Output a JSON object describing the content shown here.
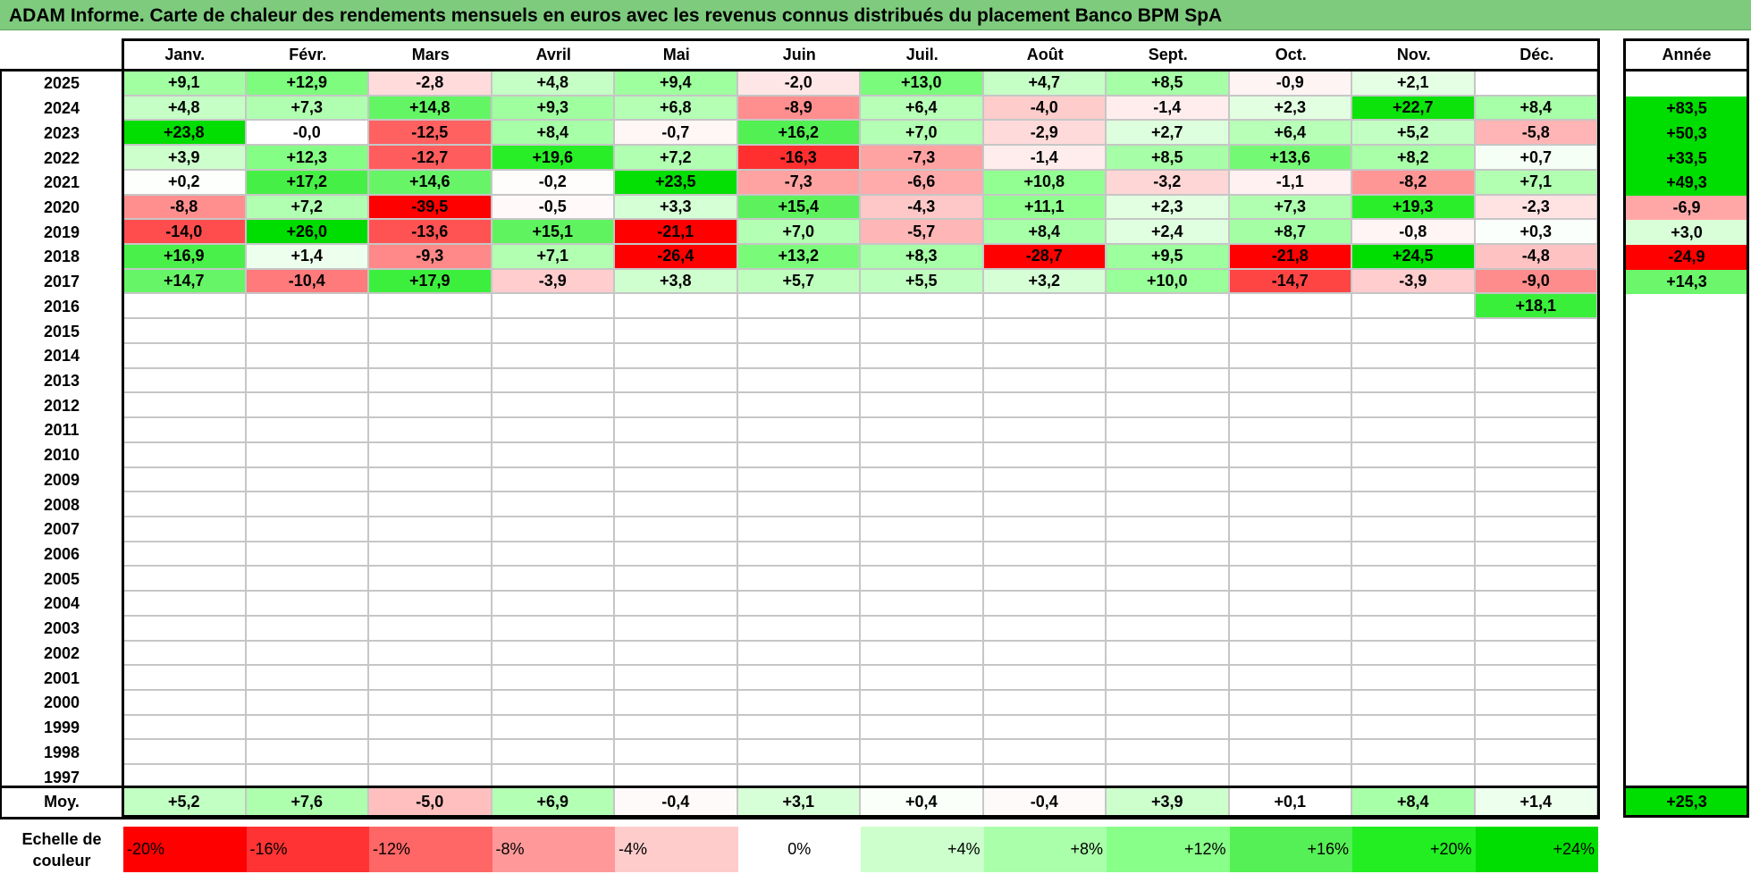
{
  "title": "ADAM Informe. Carte de chaleur des rendements mensuels en euros avec les revenus connus distribués du placement Banco BPM SpA",
  "chart_data": {
    "type": "heatmap",
    "title": "ADAM Informe. Carte de chaleur des rendements mensuels en euros avec les revenus connus distribués du placement Banco BPM SpA",
    "months": [
      "Janv.",
      "Févr.",
      "Mars",
      "Avril",
      "Mai",
      "Juin",
      "Juil.",
      "Août",
      "Sept.",
      "Oct.",
      "Nov.",
      "Déc."
    ],
    "year_header": "Année",
    "rows": [
      {
        "year": "2025",
        "values": [
          "+9,1",
          "+12,9",
          "-2,8",
          "+4,8",
          "+9,4",
          "-2,0",
          "+13,0",
          "+4,7",
          "+8,5",
          "-0,9",
          "+2,1",
          ""
        ],
        "annual": ""
      },
      {
        "year": "2024",
        "values": [
          "+4,8",
          "+7,3",
          "+14,8",
          "+9,3",
          "+6,8",
          "-8,9",
          "+6,4",
          "-4,0",
          "-1,4",
          "+2,3",
          "+22,7",
          "+8,4"
        ],
        "annual": "+83,5"
      },
      {
        "year": "2023",
        "values": [
          "+23,8",
          "-0,0",
          "-12,5",
          "+8,4",
          "-0,7",
          "+16,2",
          "+7,0",
          "-2,9",
          "+2,7",
          "+6,4",
          "+5,2",
          "-5,8"
        ],
        "annual": "+50,3"
      },
      {
        "year": "2022",
        "values": [
          "+3,9",
          "+12,3",
          "-12,7",
          "+19,6",
          "+7,2",
          "-16,3",
          "-7,3",
          "-1,4",
          "+8,5",
          "+13,6",
          "+8,2",
          "+0,7"
        ],
        "annual": "+33,5"
      },
      {
        "year": "2021",
        "values": [
          "+0,2",
          "+17,2",
          "+14,6",
          "-0,2",
          "+23,5",
          "-7,3",
          "-6,6",
          "+10,8",
          "-3,2",
          "-1,1",
          "-8,2",
          "+7,1"
        ],
        "annual": "+49,3"
      },
      {
        "year": "2020",
        "values": [
          "-8,8",
          "+7,2",
          "-39,5",
          "-0,5",
          "+3,3",
          "+15,4",
          "-4,3",
          "+11,1",
          "+2,3",
          "+7,3",
          "+19,3",
          "-2,3"
        ],
        "annual": "-6,9"
      },
      {
        "year": "2019",
        "values": [
          "-14,0",
          "+26,0",
          "-13,6",
          "+15,1",
          "-21,1",
          "+7,0",
          "-5,7",
          "+8,4",
          "+2,4",
          "+8,7",
          "-0,8",
          "+0,3"
        ],
        "annual": "+3,0"
      },
      {
        "year": "2018",
        "values": [
          "+16,9",
          "+1,4",
          "-9,3",
          "+7,1",
          "-26,4",
          "+13,2",
          "+8,3",
          "-28,7",
          "+9,5",
          "-21,8",
          "+24,5",
          "-4,8"
        ],
        "annual": "-24,9"
      },
      {
        "year": "2017",
        "values": [
          "+14,7",
          "-10,4",
          "+17,9",
          "-3,9",
          "+3,8",
          "+5,7",
          "+5,5",
          "+3,2",
          "+10,0",
          "-14,7",
          "-3,9",
          "-9,0"
        ],
        "annual": "+14,3"
      },
      {
        "year": "2016",
        "values": [
          "",
          "",
          "",
          "",
          "",
          "",
          "",
          "",
          "",
          "",
          "",
          "+18,1"
        ],
        "annual": ""
      },
      {
        "year": "2015",
        "values": [
          "",
          "",
          "",
          "",
          "",
          "",
          "",
          "",
          "",
          "",
          "",
          ""
        ],
        "annual": ""
      },
      {
        "year": "2014",
        "values": [
          "",
          "",
          "",
          "",
          "",
          "",
          "",
          "",
          "",
          "",
          "",
          ""
        ],
        "annual": ""
      },
      {
        "year": "2013",
        "values": [
          "",
          "",
          "",
          "",
          "",
          "",
          "",
          "",
          "",
          "",
          "",
          ""
        ],
        "annual": ""
      },
      {
        "year": "2012",
        "values": [
          "",
          "",
          "",
          "",
          "",
          "",
          "",
          "",
          "",
          "",
          "",
          ""
        ],
        "annual": ""
      },
      {
        "year": "2011",
        "values": [
          "",
          "",
          "",
          "",
          "",
          "",
          "",
          "",
          "",
          "",
          "",
          ""
        ],
        "annual": ""
      },
      {
        "year": "2010",
        "values": [
          "",
          "",
          "",
          "",
          "",
          "",
          "",
          "",
          "",
          "",
          "",
          ""
        ],
        "annual": ""
      },
      {
        "year": "2009",
        "values": [
          "",
          "",
          "",
          "",
          "",
          "",
          "",
          "",
          "",
          "",
          "",
          ""
        ],
        "annual": ""
      },
      {
        "year": "2008",
        "values": [
          "",
          "",
          "",
          "",
          "",
          "",
          "",
          "",
          "",
          "",
          "",
          ""
        ],
        "annual": ""
      },
      {
        "year": "2007",
        "values": [
          "",
          "",
          "",
          "",
          "",
          "",
          "",
          "",
          "",
          "",
          "",
          ""
        ],
        "annual": ""
      },
      {
        "year": "2006",
        "values": [
          "",
          "",
          "",
          "",
          "",
          "",
          "",
          "",
          "",
          "",
          "",
          ""
        ],
        "annual": ""
      },
      {
        "year": "2005",
        "values": [
          "",
          "",
          "",
          "",
          "",
          "",
          "",
          "",
          "",
          "",
          "",
          ""
        ],
        "annual": ""
      },
      {
        "year": "2004",
        "values": [
          "",
          "",
          "",
          "",
          "",
          "",
          "",
          "",
          "",
          "",
          "",
          ""
        ],
        "annual": ""
      },
      {
        "year": "2003",
        "values": [
          "",
          "",
          "",
          "",
          "",
          "",
          "",
          "",
          "",
          "",
          "",
          ""
        ],
        "annual": ""
      },
      {
        "year": "2002",
        "values": [
          "",
          "",
          "",
          "",
          "",
          "",
          "",
          "",
          "",
          "",
          "",
          ""
        ],
        "annual": ""
      },
      {
        "year": "2001",
        "values": [
          "",
          "",
          "",
          "",
          "",
          "",
          "",
          "",
          "",
          "",
          "",
          ""
        ],
        "annual": ""
      },
      {
        "year": "2000",
        "values": [
          "",
          "",
          "",
          "",
          "",
          "",
          "",
          "",
          "",
          "",
          "",
          ""
        ],
        "annual": ""
      },
      {
        "year": "1999",
        "values": [
          "",
          "",
          "",
          "",
          "",
          "",
          "",
          "",
          "",
          "",
          "",
          ""
        ],
        "annual": ""
      },
      {
        "year": "1998",
        "values": [
          "",
          "",
          "",
          "",
          "",
          "",
          "",
          "",
          "",
          "",
          "",
          ""
        ],
        "annual": ""
      },
      {
        "year": "1997",
        "values": [
          "",
          "",
          "",
          "",
          "",
          "",
          "",
          "",
          "",
          "",
          "",
          ""
        ],
        "annual": ""
      }
    ],
    "average": {
      "label": "Moy.",
      "values": [
        "+5,2",
        "+7,6",
        "-5,0",
        "+6,9",
        "-0,4",
        "+3,1",
        "+0,4",
        "-0,4",
        "+3,9",
        "+0,1",
        "+8,4",
        "+1,4"
      ],
      "annual": "+25,3"
    },
    "color_scale": {
      "label_line1": "Echelle de",
      "label_line2": "couleur",
      "stops": [
        {
          "label": "-20%",
          "value": -20,
          "color": "#ff0000"
        },
        {
          "label": "-16%",
          "value": -16,
          "color": "#ff3333"
        },
        {
          "label": "-12%",
          "value": -12,
          "color": "#ff6666"
        },
        {
          "label": "-8%",
          "value": -8,
          "color": "#ff9999"
        },
        {
          "label": "-4%",
          "value": -4,
          "color": "#ffcccc"
        },
        {
          "label": "0%",
          "value": 0,
          "color": "#ffffff"
        },
        {
          "label": "+4%",
          "value": 4,
          "color": "#ccffcc"
        },
        {
          "label": "+8%",
          "value": 8,
          "color": "#aaffaa"
        },
        {
          "label": "+12%",
          "value": 12,
          "color": "#88ff88"
        },
        {
          "label": "+16%",
          "value": 16,
          "color": "#55f055"
        },
        {
          "label": "+20%",
          "value": 20,
          "color": "#22ee22"
        },
        {
          "label": "+24%",
          "value": 24,
          "color": "#00dd00"
        }
      ]
    },
    "colors": {
      "title_bar": "#7ecb7e",
      "negative_max": "#ff0000",
      "positive_max": "#00dd00"
    }
  }
}
